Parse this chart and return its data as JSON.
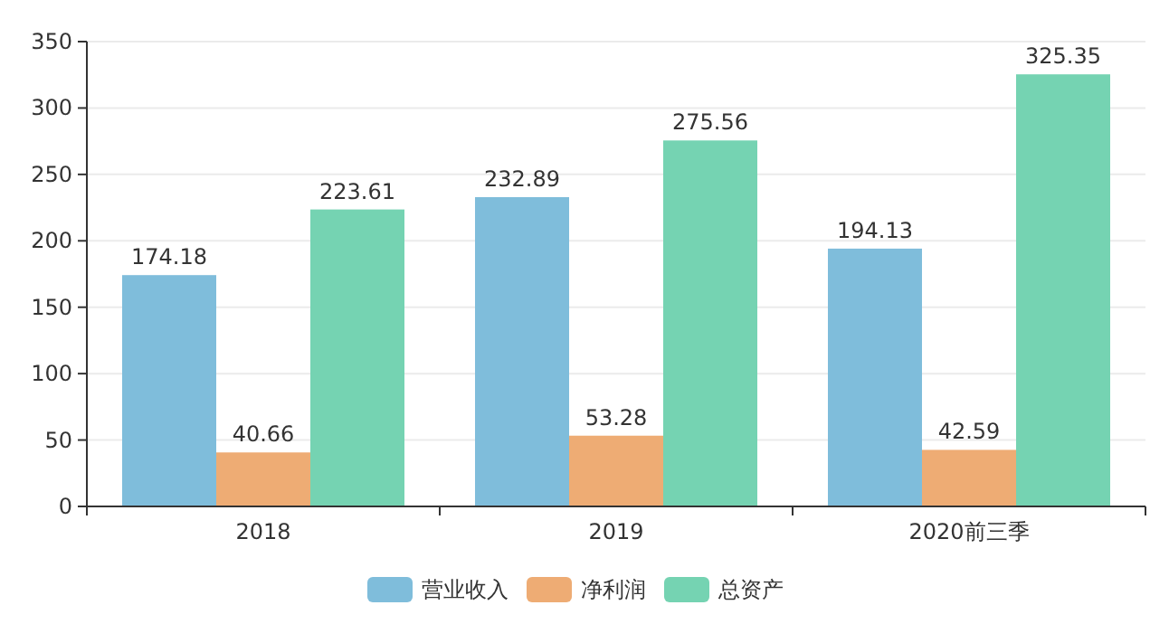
{
  "chart_data": {
    "type": "bar",
    "categories": [
      "2018",
      "2019",
      "2020前三季"
    ],
    "series": [
      {
        "name": "营业收入",
        "color": "#7fbddb",
        "values": [
          174.18,
          232.89,
          194.13
        ]
      },
      {
        "name": "净利润",
        "color": "#eeac74",
        "values": [
          40.66,
          53.28,
          42.59
        ]
      },
      {
        "name": "总资产",
        "color": "#75d3b2",
        "values": [
          223.61,
          275.56,
          325.35
        ]
      }
    ],
    "ylim": [
      0,
      350
    ],
    "yticks": [
      0,
      50,
      100,
      150,
      200,
      250,
      300,
      350
    ],
    "grid": "y",
    "legend": "bottom",
    "data_labels": true
  }
}
